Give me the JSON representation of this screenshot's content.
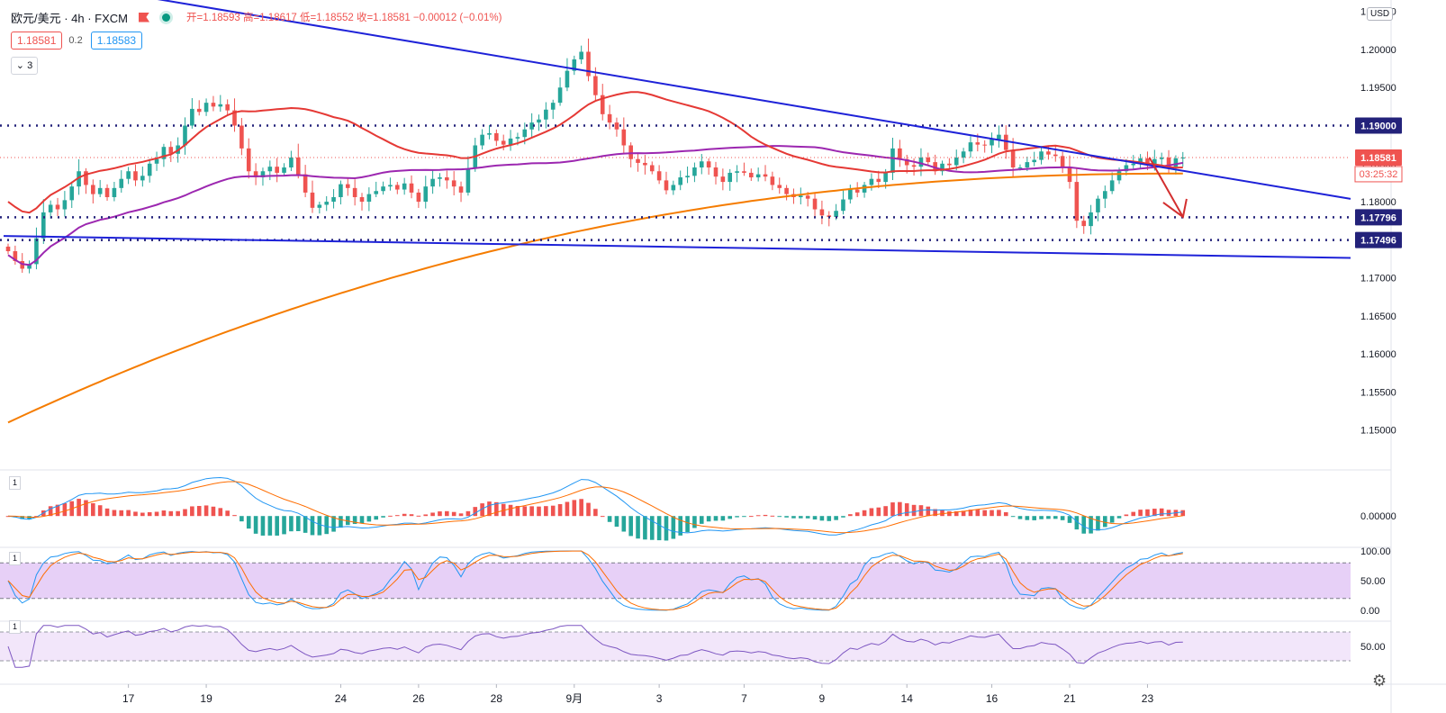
{
  "legend": {
    "symbol": "欧元/美元 · 4h · FXCM",
    "ohlc_text": "开=1.18593 高=1.18617 低=1.18552 收=1.18581 −0.00012 (−0.01%)"
  },
  "badges": {
    "bid": "1.18581",
    "spread": "0.2",
    "ask": "1.18583"
  },
  "collapse_label": "3",
  "currency": "USD",
  "pane_labels": [
    "1",
    "1",
    "1"
  ],
  "price_tags": {
    "last_price": "1.18581",
    "countdown": "03:25:32",
    "levels": [
      "1.19000",
      "1.17796",
      "1.17496"
    ]
  },
  "colors": {
    "up": "#26a69a",
    "down": "#ef5350",
    "trendline": "#1e22d8",
    "dotted": "#23227a",
    "ma_red": "#e53935",
    "ma_purple": "#9c27b0",
    "ma_orange": "#f57c00",
    "macd_line": "#2196f3",
    "signal_line": "#ff6d00",
    "stoch_fill": "#e1c4f5",
    "rsi_fill": "#f2e6fa"
  },
  "chart_data": [
    {
      "type": "candlestick",
      "symbol": "欧元/美元",
      "timeframe": "4h",
      "provider": "FXCM",
      "x_ticks": [
        "17",
        "19",
        "24",
        "26",
        "28",
        "9月",
        "3",
        "7",
        "9",
        "14",
        "16",
        "21",
        "23"
      ],
      "y_ticks": [
        "1.20500",
        "1.20000",
        "1.19500",
        "1.19000",
        "1.18500",
        "1.18000",
        "1.17500",
        "1.17000",
        "1.16500",
        "1.16000",
        "1.15500",
        "1.15000"
      ],
      "ylim": [
        1.145,
        1.2065
      ],
      "horizontal_levels": [
        1.19,
        1.17796,
        1.17496
      ],
      "last_price": 1.18581,
      "closes": [
        1.1735,
        1.1722,
        1.1712,
        1.1718,
        1.1752,
        1.1786,
        1.1796,
        1.179,
        1.1802,
        1.182,
        1.184,
        1.1822,
        1.181,
        1.1818,
        1.1806,
        1.1818,
        1.183,
        1.184,
        1.1828,
        1.1834,
        1.185,
        1.1856,
        1.1872,
        1.1863,
        1.1874,
        1.19,
        1.1922,
        1.1918,
        1.193,
        1.1925,
        1.1928,
        1.192,
        1.19,
        1.187,
        1.184,
        1.1832,
        1.184,
        1.1846,
        1.1838,
        1.1845,
        1.1858,
        1.1836,
        1.1812,
        1.1792,
        1.1796,
        1.18,
        1.1806,
        1.1823,
        1.1818,
        1.1806,
        1.18,
        1.181,
        1.1814,
        1.182,
        1.1822,
        1.1816,
        1.1824,
        1.1812,
        1.18,
        1.182,
        1.183,
        1.1832,
        1.1828,
        1.182,
        1.1812,
        1.1844,
        1.1874,
        1.1888,
        1.189,
        1.188,
        1.1875,
        1.1883,
        1.1885,
        1.1895,
        1.1904,
        1.1908,
        1.1921,
        1.193,
        1.195,
        1.1972,
        1.1987,
        1.1997,
        1.1965,
        1.194,
        1.1915,
        1.1904,
        1.1895,
        1.1874,
        1.1856,
        1.1851,
        1.1848,
        1.184,
        1.1828,
        1.1815,
        1.1822,
        1.1832,
        1.1834,
        1.1845,
        1.1853,
        1.1845,
        1.1833,
        1.1826,
        1.1838,
        1.184,
        1.1838,
        1.1832,
        1.1836,
        1.1833,
        1.1822,
        1.1818,
        1.181,
        1.1806,
        1.1808,
        1.1804,
        1.179,
        1.1782,
        1.178,
        1.1788,
        1.1803,
        1.1816,
        1.1812,
        1.1822,
        1.183,
        1.1826,
        1.1838,
        1.187,
        1.1856,
        1.1848,
        1.1846,
        1.1858,
        1.1852,
        1.184,
        1.185,
        1.1848,
        1.1858,
        1.1866,
        1.1878,
        1.1875,
        1.1874,
        1.1882,
        1.1888,
        1.1868,
        1.1845,
        1.1845,
        1.1852,
        1.1855,
        1.1866,
        1.1862,
        1.186,
        1.1846,
        1.1826,
        1.1775,
        1.1768,
        1.1786,
        1.1804,
        1.1814,
        1.1828,
        1.184,
        1.1848,
        1.185,
        1.1857,
        1.1849,
        1.1856,
        1.1858,
        1.1846,
        1.1857,
        1.1858
      ],
      "overlays": [
        {
          "kind": "descending trendline",
          "from": [
            0,
            1.21
          ],
          "to": [
            171,
            1.1833
          ]
        },
        {
          "kind": "support trendline",
          "from": [
            0,
            1.1755
          ],
          "to": [
            171,
            1.1729
          ]
        },
        {
          "kind": "arrow down",
          "from": [
            160,
            1.1858
          ],
          "to": [
            165,
            1.178
          ]
        }
      ],
      "moving_averages": {
        "red": {
          "start": 1.18,
          "end": 1.1845
        },
        "purple": {
          "start": 1.173,
          "end": 1.1851
        },
        "orange": {
          "start": 1.151,
          "end": 1.1837
        }
      }
    },
    {
      "type": "macd",
      "y_ticks": [
        "0.00000"
      ],
      "ylim": [
        -0.003,
        0.0045
      ]
    },
    {
      "type": "stochastic",
      "y_ticks": [
        "100.00",
        "50.00",
        "0.00"
      ],
      "ylim": [
        0,
        100
      ],
      "bands": [
        80,
        20
      ]
    },
    {
      "type": "rsi",
      "y_ticks": [
        "50.00"
      ],
      "ylim": [
        20,
        80
      ],
      "bands": [
        70,
        30
      ]
    }
  ]
}
